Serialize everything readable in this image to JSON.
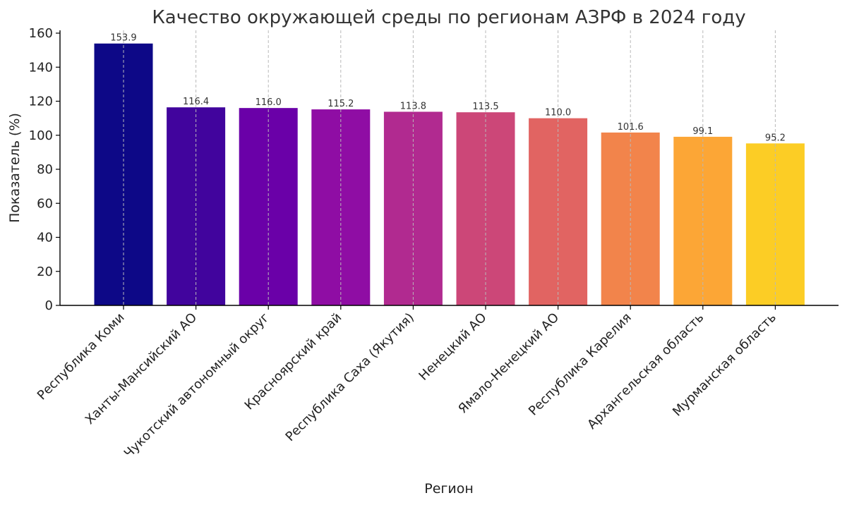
{
  "chart_data": {
    "type": "bar",
    "title": "Качество окружающей среды по регионам АЗРФ в 2024 году",
    "xlabel": "Регион",
    "ylabel": "Показатель (%)",
    "ylim": [
      0,
      160
    ],
    "yticks": [
      0,
      20,
      40,
      60,
      80,
      100,
      120,
      140,
      160
    ],
    "grid": "vertical dashed",
    "categories": [
      "Республика Коми",
      "Ханты-Мансийский АО",
      "Чукотский автономный округ",
      "Красноярский край",
      "Республика Саха (Якутия)",
      "Ненецкий АО",
      "Ямало-Ненецкий АО",
      "Республика Карелия",
      "Архангельская область",
      "Мурманская область"
    ],
    "values": [
      153.9,
      116.4,
      116.0,
      115.2,
      113.8,
      113.5,
      110.0,
      101.6,
      99.1,
      95.2
    ],
    "data_labels": [
      "153.9",
      "116.4",
      "116.0",
      "115.2",
      "113.8",
      "113.5",
      "110.0",
      "101.6",
      "99.1",
      "95.2"
    ],
    "colors": [
      "#0d0887",
      "#41049d",
      "#6a00a8",
      "#8f0da4",
      "#b12a90",
      "#cc4778",
      "#e16462",
      "#f2844b",
      "#fca636",
      "#fccd25"
    ]
  }
}
